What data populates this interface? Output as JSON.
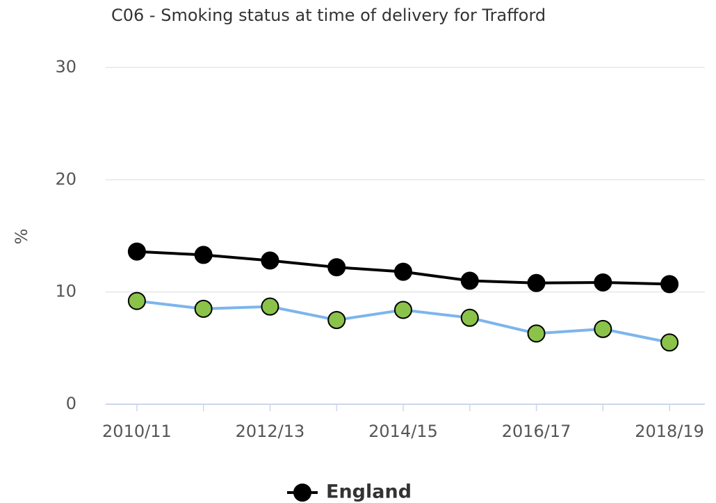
{
  "chart_data": {
    "type": "line",
    "title": "C06 - Smoking status at time of delivery for Trafford",
    "y_label": "%",
    "categories": [
      "2010/11",
      null,
      "2012/13",
      null,
      "2014/15",
      null,
      "2016/17",
      null,
      "2018/19"
    ],
    "series": [
      {
        "name": "England",
        "color": "#000000",
        "marker_color": "#000000",
        "values": [
          13.6,
          13.3,
          12.8,
          12.2,
          11.8,
          11.0,
          10.8,
          10.85,
          10.7
        ]
      },
      {
        "color": "#7cb5ec",
        "marker_color": "#8bc34a",
        "values": [
          9.2,
          8.5,
          8.7,
          7.5,
          8.4,
          7.7,
          6.3,
          6.7,
          5.5
        ]
      }
    ],
    "ylim": [
      0,
      30
    ],
    "yticks": [
      0,
      10,
      20,
      30
    ],
    "grid": true,
    "legend": "bottom"
  }
}
